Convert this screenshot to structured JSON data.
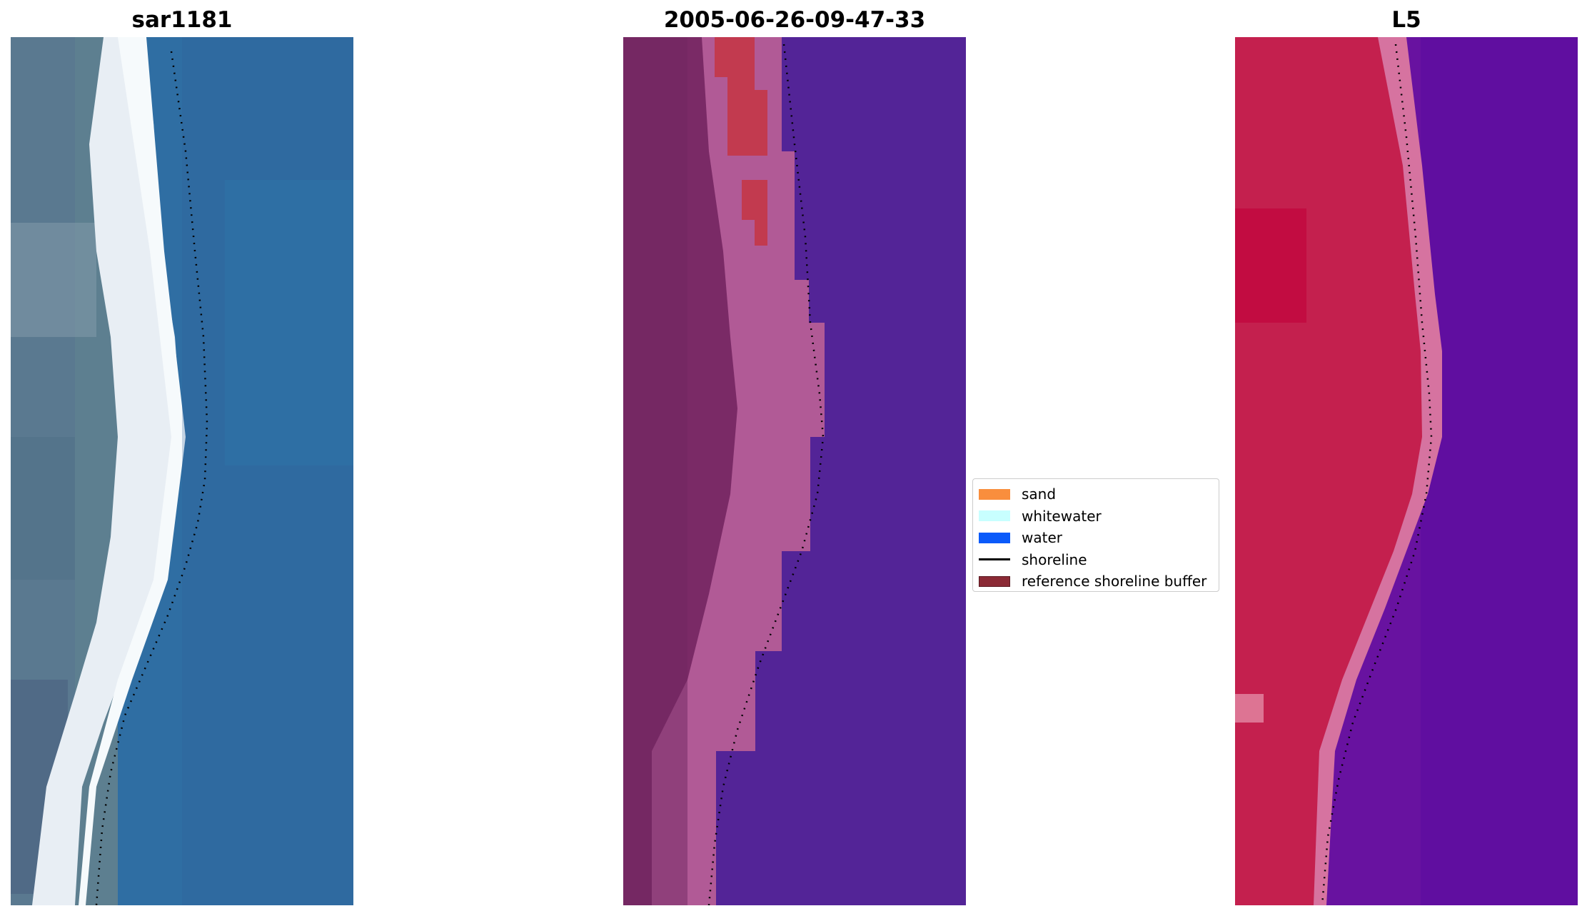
{
  "panels": [
    {
      "title": "sar1181"
    },
    {
      "title": "2005-06-26-09-47-33"
    },
    {
      "title": "L5"
    }
  ],
  "legend": {
    "items": [
      {
        "label": "sand",
        "color": "#f98e3d",
        "type": "patch"
      },
      {
        "label": "whitewater",
        "color": "#c8ffff",
        "type": "patch"
      },
      {
        "label": "water",
        "color": "#0a5afa",
        "type": "patch"
      },
      {
        "label": "shoreline",
        "color": "#000000",
        "type": "line"
      },
      {
        "label": "reference shoreline buffer",
        "color": "#8b2a35",
        "type": "patch"
      }
    ]
  },
  "colors": {
    "panel1_land": "#5d7f90",
    "panel1_beach": "#e8eef4",
    "panel1_water": "#2f6ea3",
    "panel2_land": "#7a2a66",
    "panel2_beach": "#b15a96",
    "panel2_sand_buffer": "#c23a4f",
    "panel2_water": "#532497",
    "panel3_land": "#c4204e",
    "panel3_beach": "#d673a0",
    "panel3_water": "#6812a0",
    "shoreline": "#000000"
  }
}
